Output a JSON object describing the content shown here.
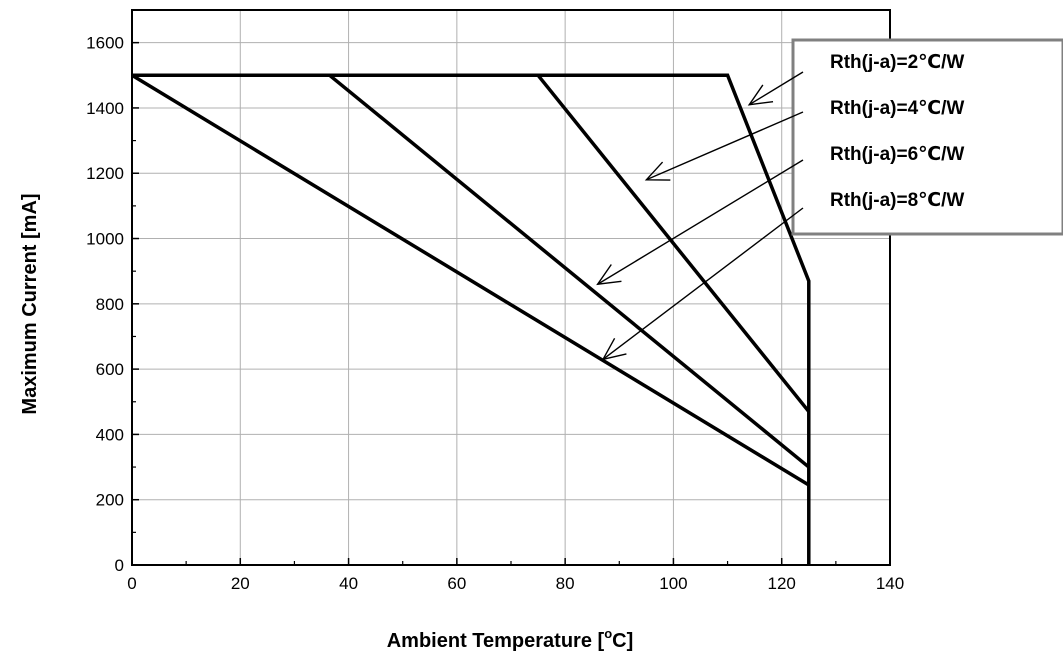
{
  "chart_data": {
    "type": "line",
    "title": "",
    "xlabel": "Ambient Temperature [",
    "xlabel_unit_super": "o",
    "xlabel_unit_rest": "C]",
    "ylabel": "Maximum Current [mA]",
    "xlim": [
      0,
      140
    ],
    "ylim": [
      0,
      1700
    ],
    "xticks": [
      0,
      20,
      40,
      60,
      80,
      100,
      120,
      140
    ],
    "yticks": [
      0,
      200,
      400,
      600,
      800,
      1000,
      1200,
      1400,
      1600
    ],
    "grid": true,
    "legend_position": "top-right",
    "series": [
      {
        "name": "Rth(j-a)=2℃/W",
        "x": [
          0,
          110,
          125,
          125
        ],
        "y": [
          1500,
          1500,
          870,
          0
        ]
      },
      {
        "name": "Rth(j-a)=4℃/W",
        "x": [
          75,
          125
        ],
        "y": [
          1500,
          470
        ]
      },
      {
        "name": "Rth(j-a)=6℃/W",
        "x": [
          36.5,
          125
        ],
        "y": [
          1500,
          300
        ]
      },
      {
        "name": "Rth(j-a)=8℃/W",
        "x": [
          0,
          125
        ],
        "y": [
          1500,
          245
        ]
      }
    ],
    "annotation_targets": [
      {
        "x": 114,
        "y": 1410
      },
      {
        "x": 95,
        "y": 1180
      },
      {
        "x": 86,
        "y": 860
      },
      {
        "x": 87,
        "y": 630
      }
    ],
    "colors": {
      "line": "#000000",
      "grid": "#b0b0b0",
      "legend_border": "#808080"
    }
  }
}
